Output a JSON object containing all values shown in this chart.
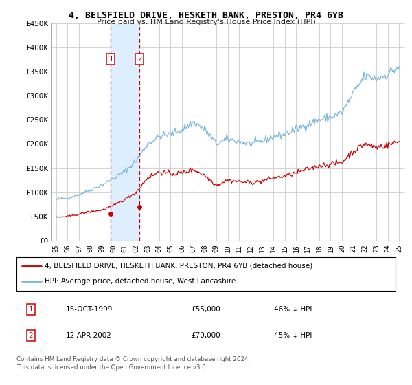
{
  "title": "4, BELSFIELD DRIVE, HESKETH BANK, PRESTON, PR4 6YB",
  "subtitle": "Price paid vs. HM Land Registry's House Price Index (HPI)",
  "legend_line1": "4, BELSFIELD DRIVE, HESKETH BANK, PRESTON, PR4 6YB (detached house)",
  "legend_line2": "HPI: Average price, detached house, West Lancashire",
  "footer": "Contains HM Land Registry data © Crown copyright and database right 2024.\nThis data is licensed under the Open Government Licence v3.0.",
  "sale1_date": "15-OCT-1999",
  "sale1_price": 55000,
  "sale1_label": "46% ↓ HPI",
  "sale2_date": "12-APR-2002",
  "sale2_price": 70000,
  "sale2_label": "45% ↓ HPI",
  "sale1_year": 1999.79,
  "sale2_year": 2002.28,
  "ylim_max": 450000,
  "hpi_color": "#7ab8e0",
  "price_color": "#cc0000",
  "shade_color": "#ddeeff",
  "grid_color": "#cccccc",
  "bg_color": "#ffffff"
}
